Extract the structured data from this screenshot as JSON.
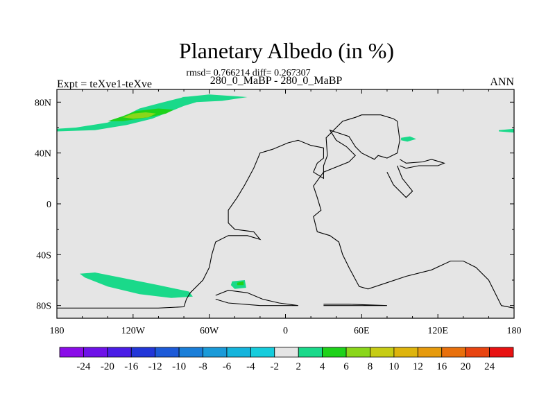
{
  "chart_data": {
    "type": "heatmap",
    "title": "Planetary Albedo (in %)",
    "stats_line": "rmsd= 0.766214 diff= 0.267307",
    "subtitle": "280_0_MaBP - 280_0_MaBP",
    "left_label": "Expt = teXve1-teXve",
    "right_label": "ANN",
    "x_range": [
      -180,
      180
    ],
    "y_range": [
      -90,
      90
    ],
    "x_ticks": [
      {
        "value": -180,
        "label": "180"
      },
      {
        "value": -120,
        "label": "120W"
      },
      {
        "value": -60,
        "label": "60W"
      },
      {
        "value": 0,
        "label": "0"
      },
      {
        "value": 60,
        "label": "60E"
      },
      {
        "value": 120,
        "label": "120E"
      },
      {
        "value": 180,
        "label": "180"
      }
    ],
    "y_ticks": [
      {
        "value": 80,
        "label": "80N"
      },
      {
        "value": 40,
        "label": "40N"
      },
      {
        "value": 0,
        "label": "0"
      },
      {
        "value": -40,
        "label": "40S"
      },
      {
        "value": -80,
        "label": "80S"
      }
    ],
    "colorbar": {
      "levels": [
        "-24",
        "-20",
        "-16",
        "-12",
        "-10",
        "-8",
        "-6",
        "-4",
        "-2",
        "2",
        "4",
        "6",
        "8",
        "10",
        "12",
        "16",
        "20",
        "24"
      ],
      "colors": [
        "#8a0ce8",
        "#6e12e8",
        "#4a1de6",
        "#2236d8",
        "#1c5ad8",
        "#1a7ed8",
        "#1a9ad8",
        "#14b4dc",
        "#16ccdc",
        "#e5e5e5",
        "#1ad98a",
        "#1ed21a",
        "#8ad61a",
        "#c6cc14",
        "#deb40c",
        "#e69a0c",
        "#e8700c",
        "#e84410",
        "#e81212"
      ]
    },
    "anomalies": [
      {
        "name": "arctic-band-north-pacific",
        "bin": "2 to 4",
        "value": 3,
        "points": [
          [
            -180,
            59
          ],
          [
            -165,
            60
          ],
          [
            -140,
            64
          ],
          [
            -125,
            70
          ],
          [
            -115,
            75
          ],
          [
            -100,
            79
          ],
          [
            -80,
            84
          ],
          [
            -60,
            86
          ],
          [
            -30,
            84
          ],
          [
            -50,
            81
          ],
          [
            -70,
            80
          ],
          [
            -80,
            77
          ],
          [
            -90,
            73
          ],
          [
            -105,
            67
          ],
          [
            -125,
            62
          ],
          [
            -150,
            58
          ],
          [
            -180,
            57
          ]
        ]
      },
      {
        "name": "arctic-core-north-pacific",
        "bin": "4 to 6",
        "value": 5,
        "points": [
          [
            -140,
            65
          ],
          [
            -128,
            69
          ],
          [
            -118,
            73
          ],
          [
            -100,
            75
          ],
          [
            -88,
            74
          ],
          [
            -94,
            71
          ],
          [
            -108,
            68
          ],
          [
            -128,
            65
          ]
        ]
      },
      {
        "name": "arctic-peak-north-pacific",
        "bin": "6 to 8",
        "value": 7,
        "points": [
          [
            -128,
            68
          ],
          [
            -120,
            71
          ],
          [
            -110,
            72
          ],
          [
            -102,
            71
          ],
          [
            -108,
            68
          ],
          [
            -120,
            67
          ]
        ]
      },
      {
        "name": "north-atlantic-patch",
        "bin": "2 to 4",
        "value": 3,
        "points": [
          [
            -82,
            84
          ],
          [
            -60,
            85
          ],
          [
            -40,
            84
          ],
          [
            -58,
            82
          ],
          [
            -75,
            83
          ]
        ]
      },
      {
        "name": "north-east-asia-patch",
        "bin": "2 to 4",
        "value": 3,
        "points": [
          [
            91,
            52
          ],
          [
            98,
            53
          ],
          [
            103,
            51
          ],
          [
            96,
            49
          ],
          [
            91,
            50
          ]
        ]
      },
      {
        "name": "dateline-north-patch",
        "bin": "2 to 4",
        "value": 3,
        "points": [
          [
            168,
            58
          ],
          [
            180,
            59
          ],
          [
            180,
            56
          ],
          [
            168,
            57
          ]
        ]
      },
      {
        "name": "southern-ocean-band",
        "bin": "2 to 4",
        "value": 3,
        "points": [
          [
            -162,
            -55
          ],
          [
            -150,
            -54
          ],
          [
            -130,
            -58
          ],
          [
            -100,
            -64
          ],
          [
            -76,
            -69
          ],
          [
            -73,
            -73
          ],
          [
            -90,
            -74
          ],
          [
            -115,
            -71
          ],
          [
            -140,
            -65
          ],
          [
            -158,
            -58
          ]
        ]
      },
      {
        "name": "south-america-tip-patch",
        "bin": "2 to 4",
        "value": 3,
        "points": [
          [
            -42,
            -61
          ],
          [
            -32,
            -60
          ],
          [
            -31,
            -66
          ],
          [
            -40,
            -67
          ],
          [
            -43,
            -64
          ]
        ]
      },
      {
        "name": "south-america-tip-core",
        "bin": "4 to 6",
        "value": 5,
        "points": [
          [
            -38,
            -62
          ],
          [
            -33,
            -61
          ],
          [
            -33,
            -64
          ],
          [
            -38,
            -64
          ]
        ]
      }
    ],
    "coastlines": [
      {
        "name": "pangea-outline",
        "points": [
          [
            -75,
            -70
          ],
          [
            -65,
            -60
          ],
          [
            -60,
            -50
          ],
          [
            -58,
            -40
          ],
          [
            -55,
            -30
          ],
          [
            -45,
            -25
          ],
          [
            -30,
            -25
          ],
          [
            -20,
            -28
          ],
          [
            -25,
            -22
          ],
          [
            -40,
            -20
          ],
          [
            -45,
            -15
          ],
          [
            -45,
            -5
          ],
          [
            -38,
            5
          ],
          [
            -32,
            15
          ],
          [
            -25,
            28
          ],
          [
            -20,
            40
          ],
          [
            -10,
            43
          ],
          [
            2,
            48
          ],
          [
            10,
            50
          ],
          [
            20,
            46
          ],
          [
            30,
            44
          ],
          [
            30,
            36
          ],
          [
            25,
            32
          ],
          [
            22,
            25
          ],
          [
            30,
            20
          ],
          [
            30,
            30
          ],
          [
            33,
            38
          ],
          [
            32,
            52
          ],
          [
            40,
            60
          ],
          [
            45,
            65
          ],
          [
            55,
            68
          ],
          [
            60,
            70
          ],
          [
            75,
            70
          ],
          [
            85,
            67
          ],
          [
            88,
            65
          ],
          [
            90,
            50
          ],
          [
            88,
            40
          ],
          [
            80,
            36
          ],
          [
            73,
            38
          ],
          [
            70,
            35
          ],
          [
            60,
            40
          ],
          [
            55,
            45
          ],
          [
            50,
            53
          ],
          [
            35,
            58
          ],
          [
            40,
            50
          ],
          [
            48,
            45
          ],
          [
            55,
            38
          ],
          [
            50,
            33
          ],
          [
            30,
            25
          ],
          [
            22,
            14
          ],
          [
            25,
            5
          ],
          [
            28,
            -5
          ],
          [
            22,
            -10
          ],
          [
            25,
            -22
          ],
          [
            35,
            -25
          ],
          [
            42,
            -30
          ],
          [
            45,
            -40
          ],
          [
            50,
            -50
          ],
          [
            58,
            -65
          ],
          [
            65,
            -67
          ],
          [
            80,
            -62
          ],
          [
            95,
            -57
          ],
          [
            115,
            -52
          ],
          [
            130,
            -45
          ],
          [
            140,
            -45
          ],
          [
            150,
            -50
          ],
          [
            160,
            -60
          ],
          [
            165,
            -70
          ],
          [
            170,
            -80
          ],
          [
            180,
            -82
          ]
        ]
      },
      {
        "name": "south-polar-coast",
        "points": [
          [
            -180,
            -82
          ],
          [
            -140,
            -82
          ],
          [
            -100,
            -82
          ],
          [
            -80,
            -81
          ],
          [
            -78,
            -75
          ],
          [
            -75,
            -70
          ]
        ]
      },
      {
        "name": "east-asia-inlet",
        "points": [
          [
            90,
            35
          ],
          [
            95,
            32
          ],
          [
            108,
            33
          ],
          [
            115,
            35
          ],
          [
            125,
            32
          ],
          [
            120,
            30
          ],
          [
            105,
            30
          ],
          [
            95,
            28
          ],
          [
            90,
            30
          ]
        ]
      },
      {
        "name": "east-asia-shelf",
        "points": [
          [
            88,
            30
          ],
          [
            92,
            20
          ],
          [
            100,
            10
          ],
          [
            95,
            5
          ],
          [
            85,
            15
          ],
          [
            80,
            25
          ]
        ]
      },
      {
        "name": "antarctic-peninsula",
        "points": [
          [
            -55,
            -72
          ],
          [
            -45,
            -68
          ],
          [
            -30,
            -70
          ],
          [
            -18,
            -75
          ],
          [
            -5,
            -78
          ],
          [
            10,
            -80
          ],
          [
            -20,
            -80
          ],
          [
            -45,
            -78
          ],
          [
            -55,
            -75
          ]
        ]
      },
      {
        "name": "weddell-coast",
        "points": [
          [
            30,
            -80
          ],
          [
            50,
            -80
          ],
          [
            80,
            -80
          ],
          [
            50,
            -79
          ],
          [
            30,
            -79
          ]
        ]
      }
    ]
  }
}
